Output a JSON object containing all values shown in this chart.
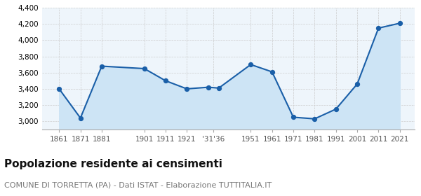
{
  "years": [
    1861,
    1871,
    1881,
    1901,
    1911,
    1921,
    1931,
    1936,
    1951,
    1961,
    1971,
    1981,
    1991,
    2001,
    2011,
    2021
  ],
  "population": [
    3400,
    3040,
    3680,
    3650,
    3500,
    3400,
    3420,
    3410,
    3700,
    3610,
    3050,
    3030,
    3150,
    3460,
    4150,
    4210
  ],
  "title": "Popolazione residente ai censimenti",
  "subtitle": "COMUNE DI TORRETTA (PA) - Dati ISTAT - Elaborazione TUTTITALIA.IT",
  "ylim": [
    2900,
    4400
  ],
  "yticks": [
    3000,
    3200,
    3400,
    3600,
    3800,
    4000,
    4200,
    4400
  ],
  "xtick_positions": [
    1861,
    1871,
    1881,
    1901,
    1911,
    1921,
    1933.5,
    1951,
    1961,
    1971,
    1981,
    1991,
    2001,
    2011,
    2021
  ],
  "xtick_labels": [
    "1861",
    "1871",
    "1881",
    "1901",
    "1911",
    "1921",
    "'31'36",
    "1951",
    "1961",
    "1971",
    "1981",
    "1991",
    "2001",
    "2011",
    "2021"
  ],
  "xlim_left": 1853,
  "xlim_right": 2028,
  "line_color": "#1a5fa8",
  "fill_color": "#cde4f5",
  "marker_color": "#1a5fa8",
  "grid_color": "#cccccc",
  "bg_color": "#eef5fb",
  "title_fontsize": 11,
  "subtitle_fontsize": 8,
  "tick_fontsize": 7.5
}
